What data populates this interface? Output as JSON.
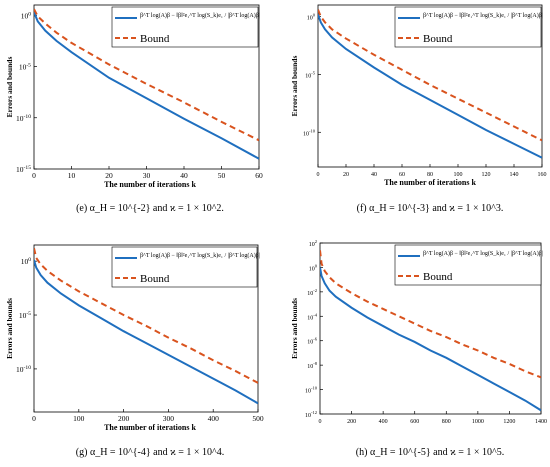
{
  "colors": {
    "error_line": "#1f6fbf",
    "bound_line": "#d9531e",
    "axis": "#000000"
  },
  "chart_data": [
    {
      "type": "line",
      "panel": "e",
      "caption": "(e) α_H = 10^{-2} and ϰ = 1 × 10^2.",
      "xlabel": "The number of iterations k",
      "ylabel": "Errors and bounds",
      "xlim": [
        0,
        60
      ],
      "x_ticks": [
        0,
        10,
        20,
        30,
        40,
        50,
        60
      ],
      "ylog": true,
      "ylim_exp": [
        -15,
        1
      ],
      "y_tick_exps": [
        -15,
        -10,
        -5,
        0
      ],
      "legend_placement": "top-right",
      "series": [
        {
          "name": "β^T log(A)β − ‖β‖²e₁^T log(S_k)e₁ / |β^T log(A)β|",
          "style": "solid",
          "x": [
            0,
            1,
            3,
            6,
            10,
            20,
            30,
            40,
            50,
            60
          ],
          "y_exp": [
            0.3,
            -0.6,
            -1.5,
            -2.5,
            -3.6,
            -6.1,
            -8.1,
            -10.1,
            -12.0,
            -14.0
          ]
        },
        {
          "name": "Bound",
          "style": "dashed",
          "x": [
            0,
            1,
            3,
            6,
            10,
            20,
            30,
            40,
            50,
            60
          ],
          "y_exp": [
            0.6,
            -0.1,
            -0.8,
            -1.7,
            -2.7,
            -4.8,
            -6.7,
            -8.5,
            -10.4,
            -12.2
          ]
        }
      ]
    },
    {
      "type": "line",
      "panel": "f",
      "caption": "(f) α_H = 10^{-3} and ϰ = 1 × 10^3.",
      "xlabel": "The number of iterations k",
      "ylabel": "Errors and bounds",
      "xlim": [
        0,
        160
      ],
      "x_ticks": [
        0,
        20,
        40,
        60,
        80,
        100,
        120,
        140,
        160
      ],
      "ylog": true,
      "ylim_exp": [
        -13,
        1
      ],
      "y_tick_exps": [
        -10,
        -5,
        0
      ],
      "legend_placement": "top-right",
      "series": [
        {
          "name": "β^T log(A)β − ‖β‖²e₁^T log(S_k)e₁ / |β^T log(A)β|",
          "style": "solid",
          "x": [
            0,
            2,
            5,
            10,
            20,
            40,
            60,
            80,
            100,
            120,
            140,
            160
          ],
          "y_exp": [
            0.2,
            -0.5,
            -1.1,
            -1.8,
            -2.8,
            -4.4,
            -5.9,
            -7.2,
            -8.5,
            -9.8,
            -11.0,
            -12.2
          ]
        },
        {
          "name": "Bound",
          "style": "dashed",
          "x": [
            0,
            2,
            5,
            10,
            20,
            40,
            60,
            80,
            100,
            120,
            140,
            160
          ],
          "y_exp": [
            0.6,
            0.0,
            -0.5,
            -1.1,
            -1.9,
            -3.3,
            -4.6,
            -5.9,
            -7.1,
            -8.3,
            -9.5,
            -10.7
          ]
        }
      ]
    },
    {
      "type": "line",
      "panel": "g",
      "caption": "(g) α_H = 10^{-4} and ϰ = 1 × 10^4.",
      "xlabel": "The number of iterations k",
      "ylabel": "Errors and bounds",
      "xlim": [
        0,
        500
      ],
      "x_ticks": [
        0,
        100,
        200,
        300,
        400,
        500
      ],
      "ylog": true,
      "ylim_exp": [
        -14,
        1.5
      ],
      "y_tick_exps": [
        -10,
        -5,
        0
      ],
      "legend_placement": "top-right",
      "series": [
        {
          "name": "β^T log(A)β − ‖β‖²e₁^T log(S_k)e₁ / |β^T log(A)β|",
          "style": "solid",
          "x": [
            0,
            5,
            15,
            30,
            60,
            100,
            150,
            200,
            250,
            300,
            350,
            400,
            450,
            500
          ],
          "y_exp": [
            0.1,
            -0.6,
            -1.3,
            -2.0,
            -3.0,
            -4.1,
            -5.3,
            -6.5,
            -7.6,
            -8.7,
            -9.8,
            -10.9,
            -12.0,
            -13.2
          ]
        },
        {
          "name": "Bound",
          "style": "dashed",
          "x": [
            0,
            5,
            15,
            30,
            60,
            100,
            150,
            200,
            250,
            300,
            350,
            400,
            450,
            500
          ],
          "y_exp": [
            1.2,
            0.3,
            -0.3,
            -0.9,
            -1.8,
            -2.8,
            -3.9,
            -5.0,
            -6.0,
            -7.1,
            -8.1,
            -9.2,
            -10.2,
            -11.3
          ]
        }
      ]
    },
    {
      "type": "line",
      "panel": "h",
      "caption": "(h) α_H = 10^{-5} and ϰ = 1 × 10^5.",
      "xlabel": "",
      "ylabel": "Errors and bounds",
      "xlim": [
        0,
        1400
      ],
      "x_ticks": [
        0,
        200,
        400,
        600,
        800,
        1000,
        1200,
        1400
      ],
      "ylog": true,
      "ylim_exp": [
        -12,
        2
      ],
      "y_tick_exps": [
        -12,
        -10,
        -8,
        -6,
        -4,
        -2,
        0,
        2
      ],
      "legend_placement": "top-right",
      "series": [
        {
          "name": "β^T log(A)β − ‖β‖²e₁^T log(S_k)e₁ / |β^T log(A)β|",
          "style": "solid",
          "x": [
            0,
            10,
            30,
            60,
            100,
            200,
            300,
            400,
            500,
            600,
            700,
            800,
            900,
            1000,
            1100,
            1200,
            1300,
            1400
          ],
          "y_exp": [
            0.0,
            -0.7,
            -1.3,
            -1.9,
            -2.4,
            -3.3,
            -4.1,
            -4.8,
            -5.5,
            -6.1,
            -6.8,
            -7.4,
            -8.1,
            -8.8,
            -9.5,
            -10.2,
            -10.9,
            -11.7
          ]
        },
        {
          "name": "Bound",
          "style": "dashed",
          "x": [
            0,
            10,
            30,
            60,
            100,
            200,
            300,
            400,
            500,
            600,
            700,
            800,
            900,
            1000,
            1100,
            1200,
            1300,
            1400
          ],
          "y_exp": [
            1.4,
            0.3,
            -0.3,
            -0.8,
            -1.3,
            -2.1,
            -2.8,
            -3.4,
            -4.0,
            -4.6,
            -5.2,
            -5.7,
            -6.3,
            -6.8,
            -7.4,
            -7.9,
            -8.5,
            -9.0
          ]
        }
      ]
    }
  ]
}
